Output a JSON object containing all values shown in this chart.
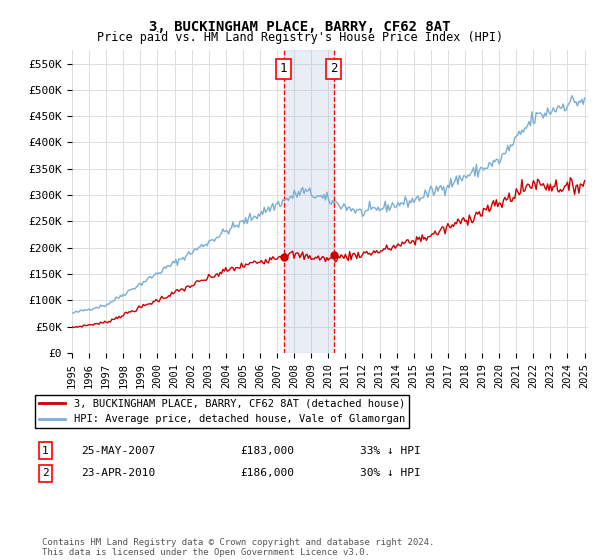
{
  "title": "3, BUCKINGHAM PLACE, BARRY, CF62 8AT",
  "subtitle": "Price paid vs. HM Land Registry's House Price Index (HPI)",
  "ylim": [
    0,
    575000
  ],
  "yticks": [
    0,
    50000,
    100000,
    150000,
    200000,
    250000,
    300000,
    350000,
    400000,
    450000,
    500000,
    550000
  ],
  "ytick_labels": [
    "£0",
    "£50K",
    "£100K",
    "£150K",
    "£200K",
    "£250K",
    "£300K",
    "£350K",
    "£400K",
    "£450K",
    "£500K",
    "£550K"
  ],
  "sale1_date_num": 2007.39,
  "sale1_price": 183000,
  "sale2_date_num": 2010.31,
  "sale2_price": 186000,
  "legend_red": "3, BUCKINGHAM PLACE, BARRY, CF62 8AT (detached house)",
  "legend_blue": "HPI: Average price, detached house, Vale of Glamorgan",
  "annotation1": [
    "1",
    "25-MAY-2007",
    "£183,000",
    "33% ↓ HPI"
  ],
  "annotation2": [
    "2",
    "23-APR-2010",
    "£186,000",
    "30% ↓ HPI"
  ],
  "footer": "Contains HM Land Registry data © Crown copyright and database right 2024.\nThis data is licensed under the Open Government Licence v3.0.",
  "red_color": "#cc0000",
  "blue_color": "#7aaed4",
  "background_color": "#ffffff",
  "grid_color": "#dddddd"
}
